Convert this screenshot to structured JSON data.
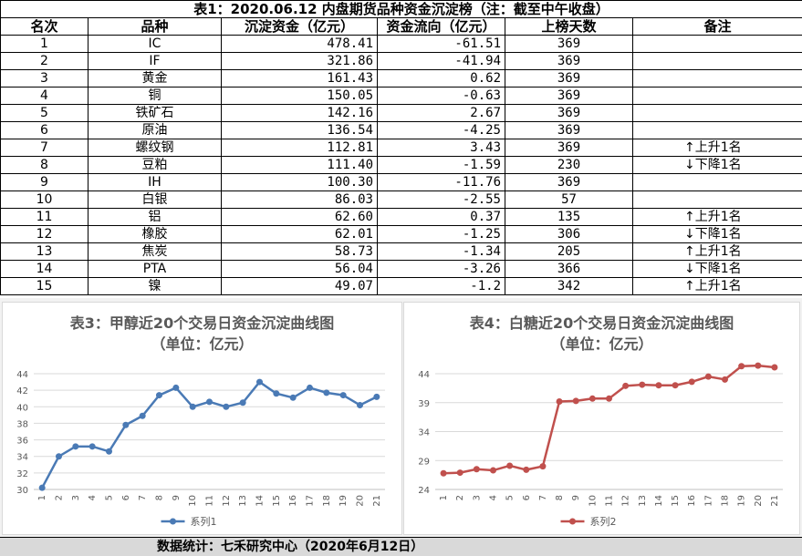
{
  "table": {
    "title": "表1：2020.06.12 内盘期货品种资金沉淀榜（注：截至中午收盘）",
    "headers": [
      "名次",
      "品种",
      "沉淀资金（亿元）",
      "资金流向（亿元）",
      "上榜天数",
      "备注"
    ],
    "rows": [
      {
        "rank": "1",
        "name": "IC",
        "fund": "478.41",
        "flow": "-61.51",
        "days": "369",
        "note": ""
      },
      {
        "rank": "2",
        "name": "IF",
        "fund": "321.86",
        "flow": "-41.94",
        "days": "369",
        "note": ""
      },
      {
        "rank": "3",
        "name": "黄金",
        "fund": "161.43",
        "flow": "0.62",
        "days": "369",
        "note": ""
      },
      {
        "rank": "4",
        "name": "铜",
        "fund": "150.05",
        "flow": "-0.63",
        "days": "369",
        "note": ""
      },
      {
        "rank": "5",
        "name": "铁矿石",
        "fund": "142.16",
        "flow": "2.67",
        "days": "369",
        "note": ""
      },
      {
        "rank": "6",
        "name": "原油",
        "fund": "136.54",
        "flow": "-4.25",
        "days": "369",
        "note": ""
      },
      {
        "rank": "7",
        "name": "螺纹钢",
        "fund": "112.81",
        "flow": "3.43",
        "days": "369",
        "note": "上升1名",
        "dir": "up"
      },
      {
        "rank": "8",
        "name": "豆粕",
        "fund": "111.40",
        "flow": "-1.59",
        "days": "230",
        "note": "下降1名",
        "dir": "down"
      },
      {
        "rank": "9",
        "name": "IH",
        "fund": "100.30",
        "flow": "-11.76",
        "days": "369",
        "note": ""
      },
      {
        "rank": "10",
        "name": "白银",
        "fund": "86.03",
        "flow": "-2.55",
        "days": "57",
        "note": ""
      },
      {
        "rank": "11",
        "name": "铝",
        "fund": "62.60",
        "flow": "0.37",
        "days": "135",
        "note": "上升1名",
        "dir": "up"
      },
      {
        "rank": "12",
        "name": "橡胶",
        "fund": "62.01",
        "flow": "-1.25",
        "days": "306",
        "note": "下降1名",
        "dir": "down"
      },
      {
        "rank": "13",
        "name": "焦炭",
        "fund": "58.73",
        "flow": "-1.34",
        "days": "205",
        "note": "上升1名",
        "dir": "up"
      },
      {
        "rank": "14",
        "name": "PTA",
        "fund": "56.04",
        "flow": "-3.26",
        "days": "366",
        "note": "下降1名",
        "dir": "down"
      },
      {
        "rank": "15",
        "name": "镍",
        "fund": "49.07",
        "flow": "-1.2",
        "days": "342",
        "note": "上升1名",
        "dir": "up"
      }
    ]
  },
  "chart_data": [
    {
      "type": "line",
      "title": "表3：甲醇近20个交易日资金沉淀曲线图",
      "subtitle": "（单位：亿元）",
      "x": [
        "1",
        "2",
        "3",
        "4",
        "5",
        "6",
        "7",
        "8",
        "9",
        "10",
        "11",
        "12",
        "13",
        "14",
        "15",
        "16",
        "17",
        "18",
        "19",
        "20",
        "21"
      ],
      "series": [
        {
          "name": "系列1",
          "values": [
            30.2,
            34.0,
            35.2,
            35.2,
            34.6,
            37.8,
            38.9,
            41.4,
            42.3,
            40.0,
            40.6,
            40.0,
            40.5,
            43.0,
            41.6,
            41.1,
            42.3,
            41.7,
            41.4,
            40.2,
            41.2
          ]
        }
      ],
      "ylim": [
        30,
        44
      ],
      "yticks": [
        30,
        32,
        34,
        36,
        38,
        40,
        42,
        44
      ],
      "color": "#4a7ab5",
      "legend": "bottom",
      "grid": true
    },
    {
      "type": "line",
      "title": "表4：白糖近20个交易日资金沉淀曲线图",
      "subtitle": "（单位：亿元）",
      "x": [
        "1",
        "2",
        "3",
        "4",
        "5",
        "6",
        "7",
        "8",
        "9",
        "10",
        "11",
        "12",
        "13",
        "14",
        "15",
        "16",
        "17",
        "18",
        "19",
        "20",
        "21"
      ],
      "series": [
        {
          "name": "系列2",
          "values": [
            26.8,
            26.9,
            27.5,
            27.3,
            28.1,
            27.4,
            28.0,
            39.2,
            39.3,
            39.7,
            39.7,
            41.9,
            42.1,
            42.0,
            42.0,
            42.6,
            43.5,
            43.0,
            45.3,
            45.4,
            45.1
          ]
        }
      ],
      "ylim": [
        24,
        44
      ],
      "yticks": [
        24,
        29,
        34,
        39,
        44
      ],
      "color": "#c0504d",
      "legend": "bottom",
      "grid": true
    }
  ],
  "footer": "数据统计：七禾研究中心（2020年6月12日）"
}
